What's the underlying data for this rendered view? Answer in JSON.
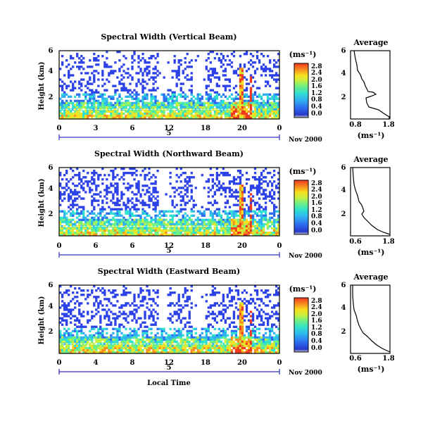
{
  "chart_data": [
    {
      "type": "heatmap",
      "title": "Spectral Width (Vertical Beam)",
      "ylabel": "Height (km)",
      "yticks": [
        "6",
        "4",
        "2"
      ],
      "xticks": [
        "0",
        "3",
        "6",
        "12",
        "18",
        "20",
        "0"
      ],
      "date_label": "5",
      "date_suffix": "Nov 2000",
      "colorbar": {
        "unit": "(ms⁻¹)",
        "ticks": [
          "2.8",
          "2.4",
          "2.0",
          "1.6",
          "1.2",
          "0.8",
          "0.4",
          "0.0"
        ]
      },
      "profile": {
        "title": "Average",
        "yticks": [
          "6",
          "4",
          "2"
        ],
        "xticks": [
          "0.8",
          "1.8"
        ],
        "xlabel": "(ms⁻¹)"
      }
    },
    {
      "type": "heatmap",
      "title": "Spectral Width (Northward Beam)",
      "ylabel": "Height (km)",
      "yticks": [
        "6",
        "4",
        "2"
      ],
      "xticks": [
        "0",
        "6",
        "6",
        "12",
        "18",
        "20",
        "0"
      ],
      "date_label": "5",
      "date_suffix": "Nov 2000",
      "colorbar": {
        "unit": "(ms⁻¹)",
        "ticks": [
          "2.8",
          "2.4",
          "2.0",
          "1.6",
          "1.2",
          "0.8",
          "0.4",
          "0.0"
        ]
      },
      "profile": {
        "title": "Average",
        "yticks": [
          "6",
          "4",
          "2"
        ],
        "xticks": [
          "0.6",
          "1.8"
        ],
        "xlabel": "(ms⁻¹)"
      }
    },
    {
      "type": "heatmap",
      "title": "Spectral Width (Eastward Beam)",
      "ylabel": "Height (km)",
      "yticks": [
        "6",
        "4",
        "2"
      ],
      "xticks": [
        "0",
        "4",
        "8",
        "12",
        "18",
        "20",
        "0"
      ],
      "date_label": "5",
      "date_suffix": "Nov 2000",
      "xlabel": "Local Time",
      "colorbar": {
        "unit": "(ms⁻¹)",
        "ticks": [
          "2.8",
          "2.4",
          "2.0",
          "1.6",
          "1.2",
          "0.8",
          "0.4",
          "0.0"
        ]
      },
      "profile": {
        "title": "Average",
        "yticks": [
          "6",
          "4",
          "2"
        ],
        "xticks": [
          "0.6",
          "1.8"
        ],
        "xlabel": "(ms⁻¹)"
      }
    }
  ],
  "colors": {
    "scale": [
      "#d0d0d0",
      "#2838c8",
      "#2c6cf0",
      "#30b0f0",
      "#30e0d0",
      "#70f080",
      "#c8f040",
      "#f8e020",
      "#f89020",
      "#f03820"
    ],
    "sparse": "#2c42e8"
  }
}
